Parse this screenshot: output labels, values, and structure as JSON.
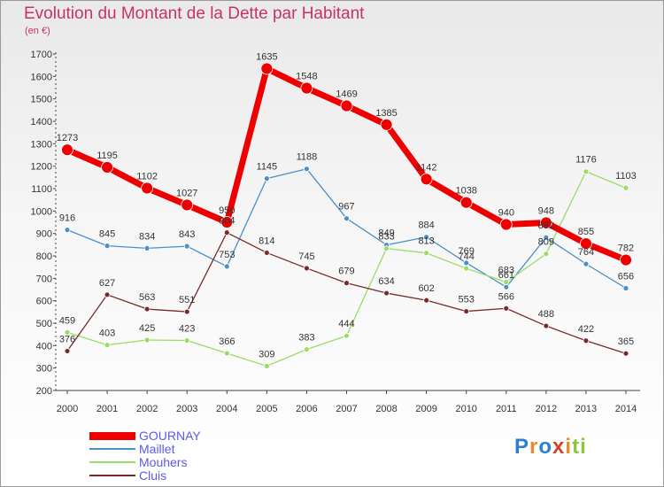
{
  "title": "Evolution du Montant de la Dette par Habitant",
  "unit": "(en €)",
  "logo": {
    "letters": [
      "P",
      "r",
      "o",
      "x",
      "i",
      "t",
      "i"
    ]
  },
  "chart_data": {
    "type": "line",
    "x": [
      "2000",
      "2001",
      "2002",
      "2003",
      "2004",
      "2005",
      "2006",
      "2007",
      "2008",
      "2009",
      "2010",
      "2011",
      "2012",
      "2013",
      "2014"
    ],
    "ylim": [
      200,
      1700
    ],
    "yticks": [
      200,
      300,
      400,
      500,
      600,
      700,
      800,
      900,
      1000,
      1100,
      1200,
      1300,
      1400,
      1500,
      1600,
      1700
    ],
    "grid": false,
    "legend_position": "bottom-left",
    "series": [
      {
        "name": "GOURNAY",
        "color": "#ee0000",
        "values": [
          1273,
          1195,
          1102,
          1027,
          950,
          1635,
          1548,
          1469,
          1385,
          1142,
          1038,
          940,
          948,
          855,
          782
        ]
      },
      {
        "name": "Maillet",
        "color": "#4a8fc8",
        "values": [
          916,
          845,
          834,
          843,
          753,
          1145,
          1188,
          967,
          849,
          884,
          769,
          661,
          882,
          764,
          656
        ]
      },
      {
        "name": "Mouhers",
        "color": "#99dd66",
        "values": [
          459,
          403,
          425,
          423,
          366,
          309,
          383,
          444,
          833,
          813,
          744,
          683,
          809,
          1176,
          1103
        ]
      },
      {
        "name": "Cluis",
        "color": "#7a2a2a",
        "values": [
          376,
          627,
          563,
          551,
          904,
          814,
          745,
          679,
          634,
          602,
          553,
          566,
          488,
          422,
          365
        ]
      }
    ]
  }
}
